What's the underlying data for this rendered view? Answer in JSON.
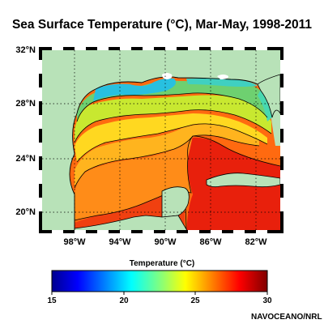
{
  "title": "Sea Surface Temperature (°C), Mar-May, 1998-2011",
  "latitude_labels": [
    "32°N",
    "28°N",
    "24°N",
    "20°N"
  ],
  "longitude_labels": [
    "98°W",
    "94°W",
    "90°W",
    "86°W",
    "82°W"
  ],
  "colorbar": {
    "title": "Temperature (°C)",
    "ticks": [
      "15",
      "20",
      "25",
      "30"
    ],
    "range": [
      15,
      30
    ]
  },
  "credit": "NAVOCEANO/NRL",
  "colors": {
    "land": "#b8e2b8",
    "ocean_warmest": "#e8200c",
    "ocean_coolest": "#28c0e0"
  }
}
